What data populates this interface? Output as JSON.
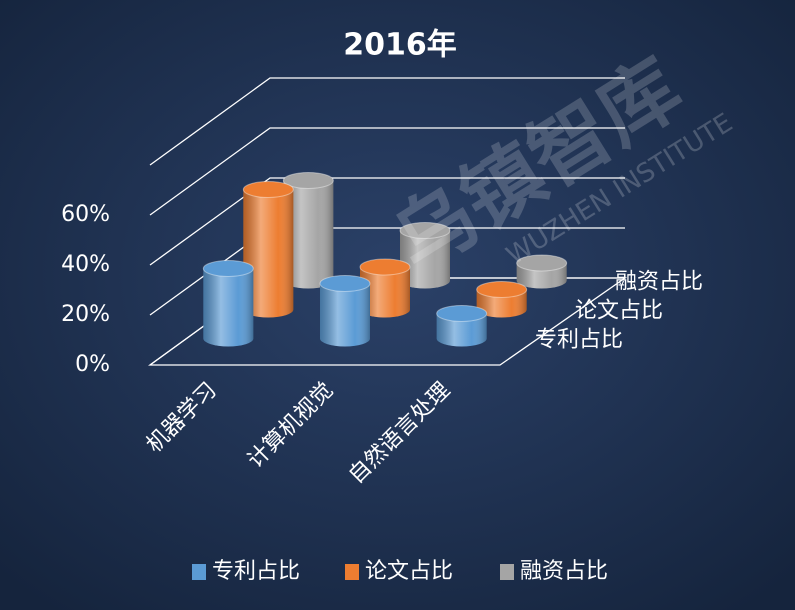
{
  "chart_data": {
    "type": "bar3d",
    "title": "2016年",
    "watermark": "乌镇智库",
    "watermark_sub": "WUZHEN INSTITUTE",
    "categories": [
      "机器学习",
      "计算机视觉",
      "自然语言处理"
    ],
    "series": [
      {
        "name": "专利占比",
        "color": "#5b9bd5",
        "values": [
          28,
          22,
          10
        ]
      },
      {
        "name": "论文占比",
        "color": "#ed7d31",
        "values": [
          48,
          17,
          8
        ]
      },
      {
        "name": "融资占比",
        "color": "#a5a5a5",
        "values": [
          40,
          20,
          7
        ]
      }
    ],
    "ylim": [
      0,
      80
    ],
    "yticks": [
      {
        "value": 0,
        "label": "0%"
      },
      {
        "value": 20,
        "label": "20%"
      },
      {
        "value": 40,
        "label": "40%"
      },
      {
        "value": 60,
        "label": "60%"
      }
    ],
    "grid": true,
    "legend": "bottom"
  }
}
